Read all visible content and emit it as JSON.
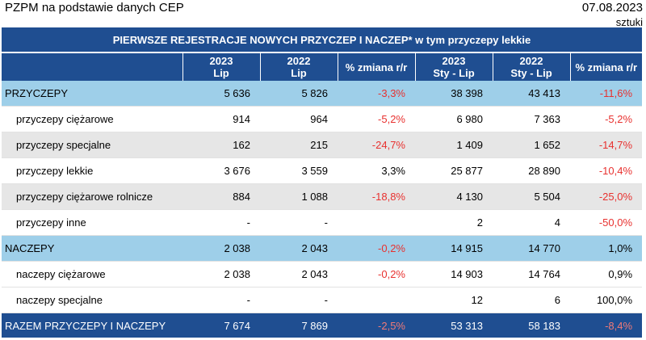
{
  "header": {
    "source": "PZPM na podstawie danych CEP",
    "date": "07.08.2023",
    "unit": "sztuki"
  },
  "table": {
    "title": "PIERWSZE REJESTRACJE NOWYCH PRZYCZEP I NACZEP* w tym przyczepy lekkie",
    "columns": [
      {
        "l1": "",
        "l2": ""
      },
      {
        "l1": "2023",
        "l2": "Lip"
      },
      {
        "l1": "2022",
        "l2": "Lip"
      },
      {
        "l1": "% zmiana r/r",
        "l2": ""
      },
      {
        "l1": "2023",
        "l2": "Sty - Lip"
      },
      {
        "l1": "2022",
        "l2": "Sty - Lip"
      },
      {
        "l1": "% zmiana r/r",
        "l2": ""
      }
    ],
    "rows": [
      {
        "label": "PRZYCZEPY",
        "v1": "5 636",
        "v2": "5 826",
        "p1": "-3,3%",
        "v3": "38 398",
        "v4": "43 413",
        "p2": "-11,6%"
      },
      {
        "label": "przyczepy ciężarowe",
        "v1": "914",
        "v2": "964",
        "p1": "-5,2%",
        "v3": "6 980",
        "v4": "7 363",
        "p2": "-5,2%"
      },
      {
        "label": "przyczepy specjalne",
        "v1": "162",
        "v2": "215",
        "p1": "-24,7%",
        "v3": "1 409",
        "v4": "1 652",
        "p2": "-14,7%"
      },
      {
        "label": "przyczepy lekkie",
        "v1": "3 676",
        "v2": "3 559",
        "p1": "3,3%",
        "v3": "25 877",
        "v4": "28 890",
        "p2": "-10,4%"
      },
      {
        "label": "przyczepy ciężarowe rolnicze",
        "v1": "884",
        "v2": "1 088",
        "p1": "-18,8%",
        "v3": "4 130",
        "v4": "5 504",
        "p2": "-25,0%"
      },
      {
        "label": "przyczepy inne",
        "v1": "-",
        "v2": "-",
        "p1": "",
        "v3": "2",
        "v4": "4",
        "p2": "-50,0%"
      },
      {
        "label": "NACZEPY",
        "v1": "2 038",
        "v2": "2 043",
        "p1": "-0,2%",
        "v3": "14 915",
        "v4": "14 770",
        "p2": "1,0%"
      },
      {
        "label": "naczepy ciężarowe",
        "v1": "2 038",
        "v2": "2 043",
        "p1": "-0,2%",
        "v3": "14 903",
        "v4": "14 764",
        "p2": "0,9%"
      },
      {
        "label": "naczepy specjalne",
        "v1": "-",
        "v2": "-",
        "p1": "",
        "v3": "12",
        "v4": "6",
        "p2": "100,0%"
      },
      {
        "label": "RAZEM PRZYCZEPY I NACZEPY",
        "v1": "7 674",
        "v2": "7 869",
        "p1": "-2,5%",
        "v3": "53 313",
        "v4": "58 183",
        "p2": "-8,4%"
      }
    ]
  },
  "colors": {
    "header_blue": "#1f4e91",
    "category_blue": "#9ecfe9",
    "alt_gray": "#e6e6e6",
    "negative_red": "#e8312f"
  }
}
